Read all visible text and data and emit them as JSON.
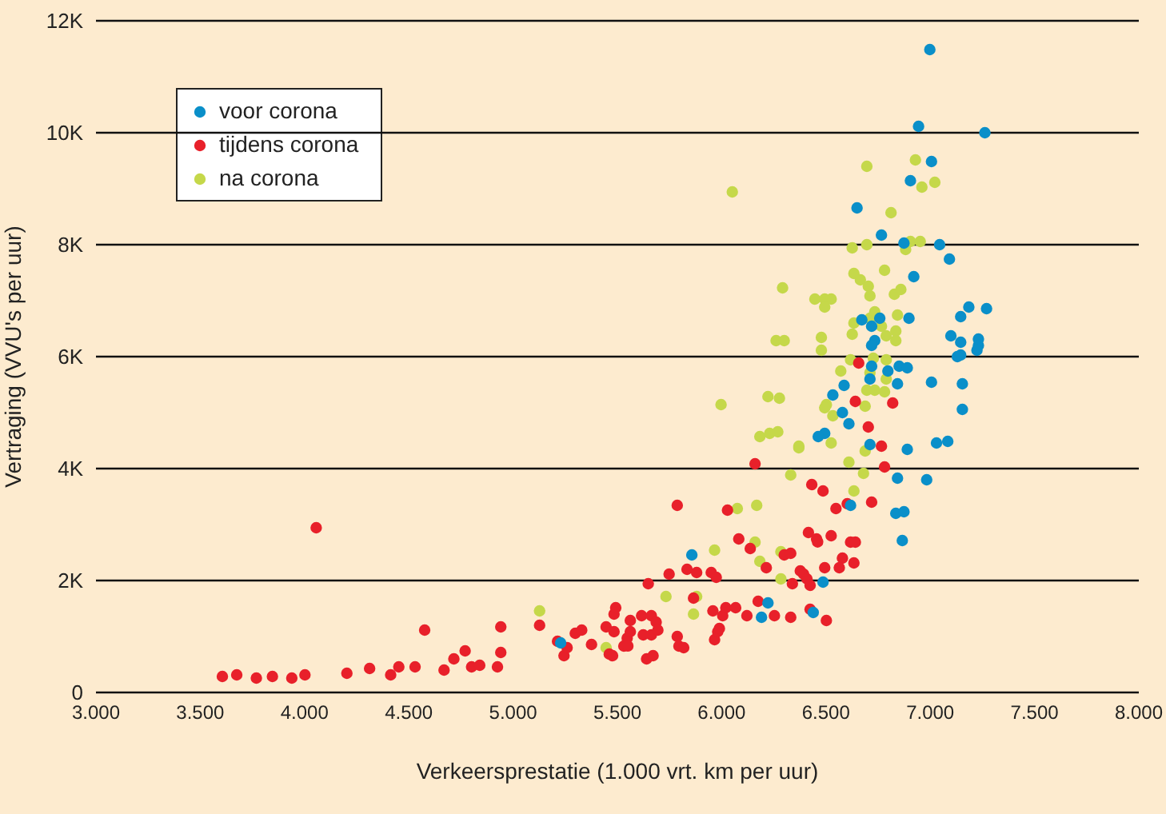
{
  "chart_data": {
    "type": "scatter",
    "xlabel": "Verkeersprestatie (1.000 vrt. km per uur)",
    "ylabel": "Vertraging (VVU's per uur)",
    "xlim": [
      3000,
      8000
    ],
    "xticks": [
      {
        "value": 3000,
        "label": "3.000"
      },
      {
        "value": 3500,
        "label": "3.500"
      },
      {
        "value": 4000,
        "label": "4.000"
      },
      {
        "value": 4500,
        "label": "4.500"
      },
      {
        "value": 5000,
        "label": "5.000"
      },
      {
        "value": 5500,
        "label": "5.500"
      },
      {
        "value": 6000,
        "label": "6.000"
      },
      {
        "value": 6500,
        "label": "6.500"
      },
      {
        "value": 7000,
        "label": "7.000"
      },
      {
        "value": 7500,
        "label": "7.500"
      },
      {
        "value": 8000,
        "label": "8.000"
      }
    ],
    "ylim": [
      0,
      12000
    ],
    "yticks": [
      0,
      {
        "value": 2000,
        "label": "2K"
      },
      {
        "value": 4000,
        "label": "4K"
      },
      {
        "value": 6000,
        "label": "6K"
      },
      {
        "value": 8000,
        "label": "8K"
      },
      {
        "value": 10000,
        "label": "10K"
      },
      {
        "value": 12000,
        "label": "12K"
      }
    ],
    "grid": "y",
    "legend": "top left",
    "marker": "circle",
    "series": [
      {
        "name": "voor corona",
        "color": "#0a8fc9",
        "x": [
          5857,
          5228,
          6618,
          6843,
          6983,
          6835,
          6874,
          6866,
          6486,
          6222,
          6191,
          6439,
          6890,
          6649,
          6766,
          6874,
          7045,
          7092,
          6921,
          7185,
          7270,
          7146,
          6898,
          6672,
          6758,
          6719,
          7099,
          7146,
          7231,
          7231,
          7224,
          7146,
          7130,
          6734,
          6719,
          6851,
          6890,
          6797,
          6719,
          6711,
          6587,
          6843,
          7006,
          7154,
          6533,
          7154,
          6579,
          6610,
          6494,
          6463,
          6711,
          7030,
          7084,
          6998,
          6944,
          7262,
          7006,
          6905
        ],
        "values": [
          2457,
          886,
          3343,
          3829,
          3800,
          3200,
          3229,
          2714,
          1971,
          1600,
          1343,
          1429,
          4343,
          8657,
          8171,
          8029,
          8000,
          7743,
          7429,
          6886,
          6857,
          6714,
          6686,
          6657,
          6686,
          6543,
          6371,
          6257,
          6314,
          6200,
          6114,
          6029,
          6000,
          6286,
          6200,
          5829,
          5800,
          5743,
          5829,
          5600,
          5486,
          5514,
          5543,
          5514,
          5314,
          5057,
          5000,
          4800,
          4629,
          4571,
          4429,
          4457,
          4486,
          11486,
          10114,
          10000,
          9486,
          9143
        ]
      },
      {
        "name": "tijdens corona",
        "color": "#e8202a",
        "x": [
          3606,
          3675,
          3769,
          3846,
          3939,
          4002,
          4056,
          4203,
          4312,
          4413,
          4452,
          4530,
          4576,
          4669,
          4716,
          4770,
          4801,
          4840,
          4925,
          4941,
          4941,
          5127,
          5213,
          5244,
          5259,
          5298,
          5329,
          5376,
          5446,
          5461,
          5477,
          5484,
          5484,
          5492,
          5531,
          5547,
          5550,
          5562,
          5562,
          5616,
          5624,
          5640,
          5663,
          5663,
          5671,
          5686,
          5694,
          5648,
          5748,
          5787,
          5787,
          5795,
          5818,
          5834,
          5880,
          5865,
          5950,
          5974,
          5958,
          5966,
          5981,
          5989,
          6005,
          6020,
          6028,
          6160,
          6781,
          6432,
          6486,
          6548,
          6602,
          6719,
          6416,
          6525,
          6455,
          6460,
          6618,
          6641,
          6082,
          6137,
          6300,
          6331,
          6579,
          6214,
          6494,
          6564,
          6634,
          6377,
          6393,
          6409,
          6339,
          6424,
          6067,
          6121,
          6175,
          6253,
          6331,
          6424,
          6502,
          6657,
          6641,
          6820,
          6703,
          6766
        ],
        "values": [
          286,
          314,
          257,
          286,
          257,
          314,
          2943,
          343,
          429,
          314,
          457,
          457,
          1114,
          400,
          600,
          743,
          457,
          486,
          457,
          714,
          1171,
          1200,
          914,
          657,
          800,
          1057,
          1114,
          857,
          1171,
          686,
          657,
          1086,
          1400,
          1514,
          829,
          971,
          830,
          1286,
          1086,
          1371,
          1029,
          600,
          1371,
          1029,
          657,
          1257,
          1114,
          1943,
          2114,
          1000,
          3343,
          829,
          800,
          2200,
          2143,
          1686,
          2143,
          2057,
          1457,
          943,
          1086,
          1143,
          1371,
          1514,
          3257,
          4086,
          4029,
          3714,
          3600,
          3286,
          3371,
          3400,
          2857,
          2800,
          2743,
          2690,
          2686,
          2686,
          2743,
          2571,
          2457,
          2486,
          2400,
          2229,
          2229,
          2229,
          2314,
          2171,
          2114,
          2029,
          1943,
          1914,
          1514,
          1371,
          1629,
          1371,
          1343,
          1486,
          1286,
          5886,
          5200,
          5171,
          4743,
          4400
        ]
      },
      {
        "name": "na corona",
        "color": "#c5d84a",
        "x": [
          5127,
          5446,
          5733,
          5880,
          5865,
          5966,
          6370,
          6688,
          6331,
          6610,
          6680,
          6634,
          6075,
          6168,
          6160,
          6183,
          6284,
          6284,
          6812,
          6626,
          6696,
          6882,
          6905,
          6952,
          6781,
          6634,
          6665,
          6703,
          6292,
          6447,
          6494,
          6525,
          6494,
          6711,
          6828,
          6859,
          6734,
          6843,
          6634,
          6711,
          6766,
          6789,
          6835,
          6835,
          6626,
          6478,
          6261,
          6300,
          6478,
          6618,
          6727,
          6789,
          6571,
          6711,
          6789,
          6696,
          6734,
          6781,
          6222,
          6277,
          5997,
          6502,
          6494,
          6533,
          6688,
          6183,
          6230,
          6269,
          6370,
          6525,
          6696,
          6929,
          6960,
          7022,
          6051
        ],
        "values": [
          1457,
          800,
          1714,
          1714,
          1400,
          2543,
          4371,
          4314,
          3886,
          4114,
          3914,
          3600,
          3286,
          3343,
          2686,
          2343,
          2514,
          2029,
          8571,
          7943,
          8000,
          7914,
          8057,
          8057,
          7543,
          7486,
          7371,
          7257,
          7229,
          7029,
          7029,
          7029,
          6886,
          7086,
          7114,
          7200,
          6800,
          6743,
          6600,
          6686,
          6543,
          6371,
          6457,
          6286,
          6400,
          6343,
          6286,
          6286,
          6114,
          5943,
          5971,
          5943,
          5743,
          5714,
          5600,
          5400,
          5400,
          5371,
          5286,
          5257,
          5143,
          5143,
          5086,
          4943,
          5114,
          4571,
          4629,
          4657,
          4400,
          4457,
          9400,
          9514,
          9029,
          9114,
          8943
        ]
      }
    ]
  }
}
